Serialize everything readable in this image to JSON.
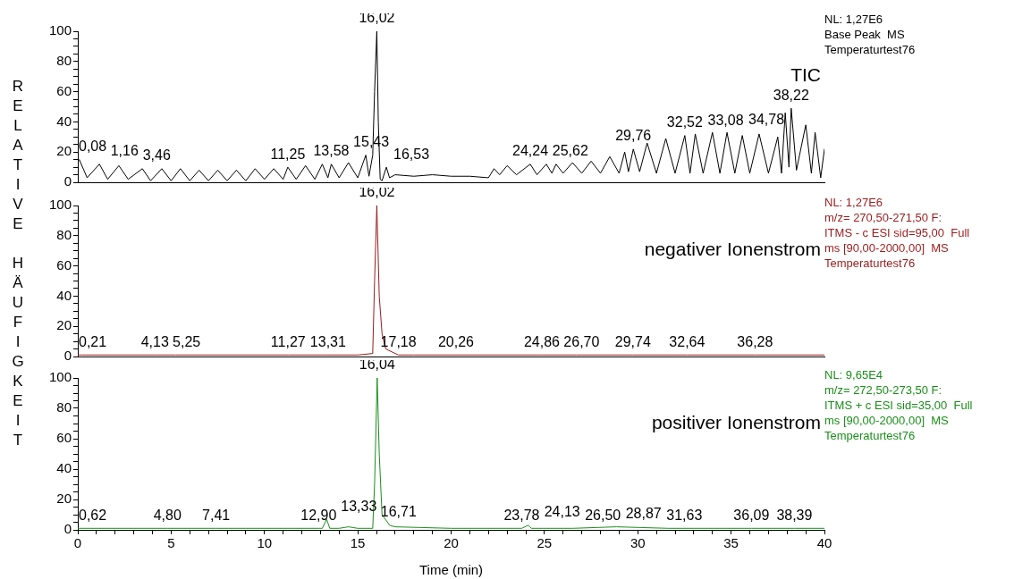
{
  "chart_data": [
    {
      "type": "line",
      "title": "TIC",
      "xlim": [
        0,
        40
      ],
      "ylim": [
        0,
        100
      ],
      "yticks": [
        0,
        {
          "value": 5,
          "label": null
        },
        {
          "value": 10,
          "label": null
        },
        {
          "value": 15,
          "label": null
        },
        20,
        {
          "value": 25,
          "label": null
        },
        {
          "value": 30,
          "label": null
        },
        {
          "value": 35,
          "label": null
        },
        40,
        {
          "value": 45,
          "label": null
        },
        {
          "value": 50,
          "label": null
        },
        {
          "value": 55,
          "label": null
        },
        60,
        {
          "value": 65,
          "label": null
        },
        {
          "value": 70,
          "label": null
        },
        {
          "value": 75,
          "label": null
        },
        80,
        {
          "value": 85,
          "label": null
        },
        {
          "value": 90,
          "label": null
        },
        {
          "value": 95,
          "label": null
        },
        100
      ],
      "tick_labels": "y",
      "marker": "none",
      "x": [
        0,
        0.08,
        0.5,
        1.16,
        1.6,
        2.2,
        2.7,
        3.46,
        3.9,
        4.5,
        5,
        5.5,
        6,
        6.5,
        7,
        7.5,
        8,
        8.5,
        9,
        9.5,
        10,
        10.5,
        11,
        11.25,
        11.7,
        12.2,
        12.7,
        13.1,
        13.4,
        13.58,
        14,
        14.5,
        15,
        15.43,
        15.6,
        15.8,
        15.9,
        16.02,
        16.1,
        16.2,
        16.3,
        16.53,
        16.7,
        17,
        18,
        19,
        20,
        21,
        22,
        22.3,
        22.6,
        23,
        23.5,
        24.24,
        24.6,
        25.1,
        25.4,
        25.62,
        26,
        26.5,
        27,
        27.5,
        28,
        28.5,
        29,
        29.3,
        29.5,
        29.76,
        30.1,
        30.5,
        31,
        31.5,
        32,
        32.52,
        32.8,
        33.08,
        33.5,
        34,
        34.4,
        34.78,
        35.2,
        35.6,
        36,
        36.5,
        37,
        37.5,
        37.7,
        37.9,
        38.1,
        38.22,
        38.5,
        39,
        39.3,
        39.5,
        39.8,
        40
      ],
      "series": [
        {
          "color": "#000000",
          "values": [
            14,
            15,
            3,
            12,
            2,
            11,
            2,
            9,
            1,
            9,
            1,
            9,
            1,
            8,
            1,
            8,
            1,
            8,
            1,
            9,
            2,
            9,
            2,
            10,
            2,
            11,
            2,
            12,
            3,
            12,
            3,
            13,
            3,
            18,
            4,
            18,
            60,
            100,
            40,
            2,
            1,
            10,
            3,
            5,
            4,
            5,
            4,
            4,
            3,
            9,
            5,
            11,
            5,
            12,
            5,
            12,
            6,
            12,
            6,
            13,
            6,
            14,
            6,
            17,
            6,
            20,
            7,
            22,
            7,
            26,
            6,
            29,
            6,
            31,
            6,
            32,
            6,
            33,
            6,
            33,
            6,
            31,
            6,
            32,
            6,
            30,
            6,
            46,
            10,
            49,
            8,
            38,
            6,
            33,
            3,
            22
          ]
        }
      ],
      "annotations": [
        "NL: 1,27E6",
        "Base Peak  MS",
        "Temperaturtest76",
        {
          "text": "0,08",
          "x": 0.08,
          "y": 15
        },
        {
          "text": "1,16",
          "x": 1.16,
          "y": 12
        },
        {
          "text": "3,46",
          "x": 3.46,
          "y": 9
        },
        {
          "text": "11,25",
          "x": 11.25,
          "y": 10
        },
        {
          "text": "13,58",
          "x": 13.58,
          "y": 12
        },
        {
          "text": "15,43",
          "x": 15.43,
          "y": 18
        },
        {
          "text": "16,02",
          "x": 16.02,
          "y": 100
        },
        {
          "text": "16,53",
          "x": 16.53,
          "y": 10
        },
        {
          "text": "24,24",
          "x": 24.24,
          "y": 12
        },
        {
          "text": "25,62",
          "x": 25.62,
          "y": 12
        },
        {
          "text": "29,76",
          "x": 29.76,
          "y": 22
        },
        {
          "text": "32,52",
          "x": 32.52,
          "y": 31
        },
        {
          "text": "33,08",
          "x": 33.08,
          "y": 32
        },
        {
          "text": "34,78",
          "x": 34.78,
          "y": 33
        },
        {
          "text": "38,22",
          "x": 38.22,
          "y": 49
        }
      ]
    },
    {
      "type": "line",
      "title": "negativer Ionenstrom",
      "ylabel": "RELATIVE HÄUFIGKEIT",
      "xlim": [
        0,
        40
      ],
      "ylim": [
        0,
        100
      ],
      "yticks": [
        0,
        {
          "value": 5,
          "label": null
        },
        {
          "value": 10,
          "label": null
        },
        {
          "value": 15,
          "label": null
        },
        20,
        {
          "value": 25,
          "label": null
        },
        {
          "value": 30,
          "label": null
        },
        {
          "value": 35,
          "label": null
        },
        40,
        {
          "value": 45,
          "label": null
        },
        {
          "value": 50,
          "label": null
        },
        {
          "value": 55,
          "label": null
        },
        60,
        {
          "value": 65,
          "label": null
        },
        {
          "value": 70,
          "label": null
        },
        {
          "value": 75,
          "label": null
        },
        80,
        {
          "value": 85,
          "label": null
        },
        {
          "value": 90,
          "label": null
        },
        {
          "value": 95,
          "label": null
        },
        100
      ],
      "tick_labels": "y",
      "marker": "none",
      "x": [
        0,
        0.21,
        4.13,
        5.25,
        11.27,
        13.31,
        15,
        15.8,
        15.9,
        16.02,
        16.15,
        16.3,
        16.5,
        17.18,
        18,
        20.26,
        24.86,
        26.7,
        29.74,
        32.64,
        36.28,
        40
      ],
      "series": [
        {
          "color": "#9b1b1b",
          "values": [
            1,
            1,
            1,
            1,
            1,
            1,
            1,
            2,
            50,
            100,
            40,
            15,
            5,
            1,
            1,
            1,
            1,
            1,
            1,
            1,
            1,
            1
          ]
        }
      ],
      "annotations": [
        "NL: 1,27E6",
        "m/z= 270,50-271,50 F:",
        "ITMS - c ESI sid=95,00  Full",
        "ms [90,00-2000,00]  MS",
        "Temperaturtest76",
        {
          "text": "0,21",
          "x": 0.21,
          "y": 1
        },
        {
          "text": "4,13",
          "x": 4.13,
          "y": 1
        },
        {
          "text": "5,25",
          "x": 5.25,
          "y": 1
        },
        {
          "text": "11,27",
          "x": 11.27,
          "y": 1
        },
        {
          "text": "13,31",
          "x": 13.31,
          "y": 1
        },
        {
          "text": "16,02",
          "x": 16.02,
          "y": 100
        },
        {
          "text": "17,18",
          "x": 17.18,
          "y": 1
        },
        {
          "text": "20,26",
          "x": 20.26,
          "y": 1
        },
        {
          "text": "24,86",
          "x": 24.86,
          "y": 1
        },
        {
          "text": "26,70",
          "x": 26.7,
          "y": 1
        },
        {
          "text": "29,74",
          "x": 29.74,
          "y": 1
        },
        {
          "text": "32,64",
          "x": 32.64,
          "y": 1
        },
        {
          "text": "36,28",
          "x": 36.28,
          "y": 1
        }
      ]
    },
    {
      "type": "line",
      "title": "positiver Ionenstrom",
      "xlabel": "Time (min)",
      "xlim": [
        0,
        40
      ],
      "xticks": [
        0,
        {
          "value": 1,
          "label": null
        },
        {
          "value": 2,
          "label": null
        },
        {
          "value": 3,
          "label": null
        },
        {
          "value": 4,
          "label": null
        },
        5,
        {
          "value": 6,
          "label": null
        },
        {
          "value": 7,
          "label": null
        },
        {
          "value": 8,
          "label": null
        },
        {
          "value": 9,
          "label": null
        },
        10,
        {
          "value": 11,
          "label": null
        },
        {
          "value": 12,
          "label": null
        },
        {
          "value": 13,
          "label": null
        },
        {
          "value": 14,
          "label": null
        },
        15,
        {
          "value": 16,
          "label": null
        },
        {
          "value": 17,
          "label": null
        },
        {
          "value": 18,
          "label": null
        },
        {
          "value": 19,
          "label": null
        },
        20,
        {
          "value": 21,
          "label": null
        },
        {
          "value": 22,
          "label": null
        },
        {
          "value": 23,
          "label": null
        },
        {
          "value": 24,
          "label": null
        },
        25,
        {
          "value": 26,
          "label": null
        },
        {
          "value": 27,
          "label": null
        },
        {
          "value": 28,
          "label": null
        },
        {
          "value": 29,
          "label": null
        },
        30,
        {
          "value": 31,
          "label": null
        },
        {
          "value": 32,
          "label": null
        },
        {
          "value": 33,
          "label": null
        },
        {
          "value": 34,
          "label": null
        },
        35,
        {
          "value": 36,
          "label": null
        },
        {
          "value": 37,
          "label": null
        },
        {
          "value": 38,
          "label": null
        },
        {
          "value": 39,
          "label": null
        },
        40
      ],
      "ylim": [
        0,
        100
      ],
      "yticks": [
        0,
        {
          "value": 5,
          "label": null
        },
        {
          "value": 10,
          "label": null
        },
        {
          "value": 15,
          "label": null
        },
        20,
        {
          "value": 25,
          "label": null
        },
        {
          "value": 30,
          "label": null
        },
        {
          "value": 35,
          "label": null
        },
        40,
        {
          "value": 45,
          "label": null
        },
        {
          "value": 50,
          "label": null
        },
        {
          "value": 55,
          "label": null
        },
        60,
        {
          "value": 65,
          "label": null
        },
        {
          "value": 70,
          "label": null
        },
        {
          "value": 75,
          "label": null
        },
        80,
        {
          "value": 85,
          "label": null
        },
        {
          "value": 90,
          "label": null
        },
        {
          "value": 95,
          "label": null
        },
        100
      ],
      "marker": "none",
      "x": [
        0,
        0.62,
        4.8,
        7.41,
        12.9,
        13.1,
        13.33,
        13.5,
        14,
        14.5,
        15,
        15.8,
        15.9,
        16.04,
        16.15,
        16.3,
        16.71,
        17,
        20,
        23.78,
        24.13,
        24.3,
        26.5,
        28.87,
        31.63,
        36.09,
        38.39,
        40
      ],
      "series": [
        {
          "color": "#1a8f1a",
          "values": [
            1,
            1,
            1,
            1,
            1,
            1,
            7,
            1,
            1,
            2,
            1,
            1,
            30,
            100,
            50,
            10,
            3,
            2,
            1,
            1,
            3,
            1,
            1,
            2,
            1,
            1,
            1,
            1
          ]
        }
      ],
      "annotations": [
        "NL: 9,65E4",
        "m/z= 272,50-273,50 F:",
        "ITMS + c ESI sid=35,00  Full",
        "ms [90,00-2000,00]  MS",
        "Temperaturtest76",
        {
          "text": "0,62",
          "x": 0.62,
          "y": 1
        },
        {
          "text": "4,80",
          "x": 4.8,
          "y": 1
        },
        {
          "text": "7,41",
          "x": 7.41,
          "y": 1
        },
        {
          "text": "12,90",
          "x": 12.9,
          "y": 1
        },
        {
          "text": "13,33",
          "x": 13.33,
          "y": 7
        },
        {
          "text": "16,04",
          "x": 16.04,
          "y": 100
        },
        {
          "text": "16,71",
          "x": 16.71,
          "y": 3
        },
        {
          "text": "23,78",
          "x": 23.78,
          "y": 1
        },
        {
          "text": "24,13",
          "x": 24.13,
          "y": 3
        },
        {
          "text": "26,50",
          "x": 26.5,
          "y": 1
        },
        {
          "text": "28,87",
          "x": 28.87,
          "y": 2
        },
        {
          "text": "31,63",
          "x": 31.63,
          "y": 1
        },
        {
          "text": "36,09",
          "x": 36.09,
          "y": 1
        },
        {
          "text": "38,39",
          "x": 38.39,
          "y": 1
        }
      ]
    }
  ]
}
